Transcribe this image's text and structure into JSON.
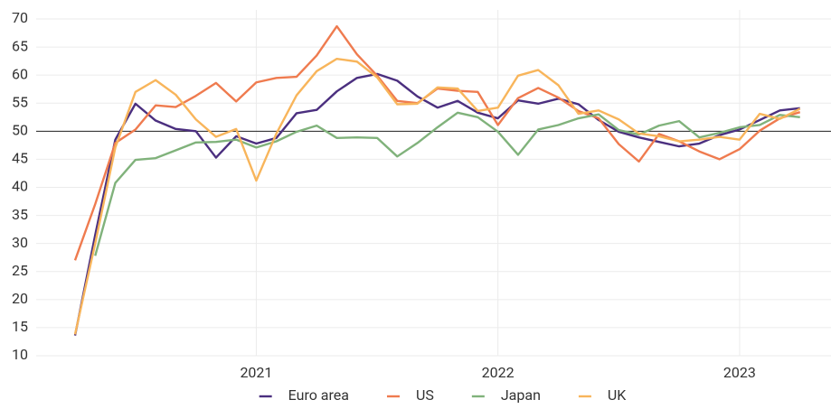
{
  "chart_data": {
    "type": "line",
    "categories": [
      null,
      null,
      null,
      null,
      null,
      null,
      null,
      null,
      null,
      "2021",
      null,
      null,
      null,
      null,
      null,
      null,
      null,
      null,
      null,
      null,
      null,
      "2022",
      null,
      null,
      null,
      null,
      null,
      null,
      null,
      null,
      null,
      null,
      null,
      "2023",
      null,
      null,
      null
    ],
    "ylim": [
      10,
      70
    ],
    "yticks": [
      10,
      15,
      20,
      25,
      30,
      35,
      40,
      45,
      50,
      55,
      60,
      65,
      70
    ],
    "grid": true,
    "hline": 50,
    "legend": "bottom",
    "series": [
      {
        "name": "Euro area",
        "color": "#4b2f7f",
        "values": [
          13.6,
          31.5,
          48.5,
          54.9,
          51.9,
          50.4,
          50.0,
          45.3,
          49.1,
          47.8,
          48.8,
          53.2,
          53.8,
          57.1,
          59.5,
          60.2,
          59.0,
          56.2,
          54.2,
          55.4,
          53.3,
          52.3,
          55.5,
          54.9,
          55.8,
          54.8,
          52.0,
          49.9,
          48.9,
          48.1,
          47.3,
          47.8,
          49.3,
          50.3,
          52.0,
          53.7,
          54.1
        ]
      },
      {
        "name": "US",
        "color": "#ef7b4f",
        "values": [
          27.0,
          37.0,
          47.9,
          50.3,
          54.6,
          54.3,
          56.3,
          58.6,
          55.3,
          58.7,
          59.5,
          59.7,
          63.5,
          68.7,
          63.7,
          59.9,
          55.4,
          55.0,
          57.6,
          57.2,
          57.0,
          51.1,
          55.9,
          57.7,
          56.0,
          53.6,
          52.3,
          47.7,
          44.6,
          49.5,
          48.2,
          46.4,
          45.0,
          46.8,
          50.1,
          52.3,
          53.4
        ]
      },
      {
        "name": "Japan",
        "color": "#80b27b",
        "values": [
          null,
          27.8,
          40.8,
          44.9,
          45.2,
          46.6,
          48.0,
          48.1,
          48.5,
          47.1,
          48.2,
          49.9,
          51.0,
          48.8,
          48.9,
          48.8,
          45.5,
          47.9,
          50.7,
          53.3,
          52.5,
          49.9,
          45.8,
          50.3,
          51.1,
          52.3,
          53.0,
          50.2,
          49.4,
          51.0,
          51.8,
          48.9,
          49.7,
          50.7,
          51.1,
          52.9,
          52.5
        ]
      },
      {
        "name": "UK",
        "color": "#f8b55b",
        "values": [
          13.8,
          30.0,
          47.1,
          57.0,
          59.1,
          56.5,
          52.1,
          49.0,
          50.4,
          41.2,
          49.6,
          56.4,
          60.7,
          62.9,
          62.4,
          59.6,
          54.8,
          54.9,
          57.8,
          57.6,
          53.6,
          54.2,
          59.9,
          60.9,
          58.2,
          53.1,
          53.7,
          52.1,
          49.6,
          49.1,
          48.2,
          48.5,
          49.0,
          48.5,
          53.1,
          52.2,
          54.0
        ]
      }
    ]
  }
}
